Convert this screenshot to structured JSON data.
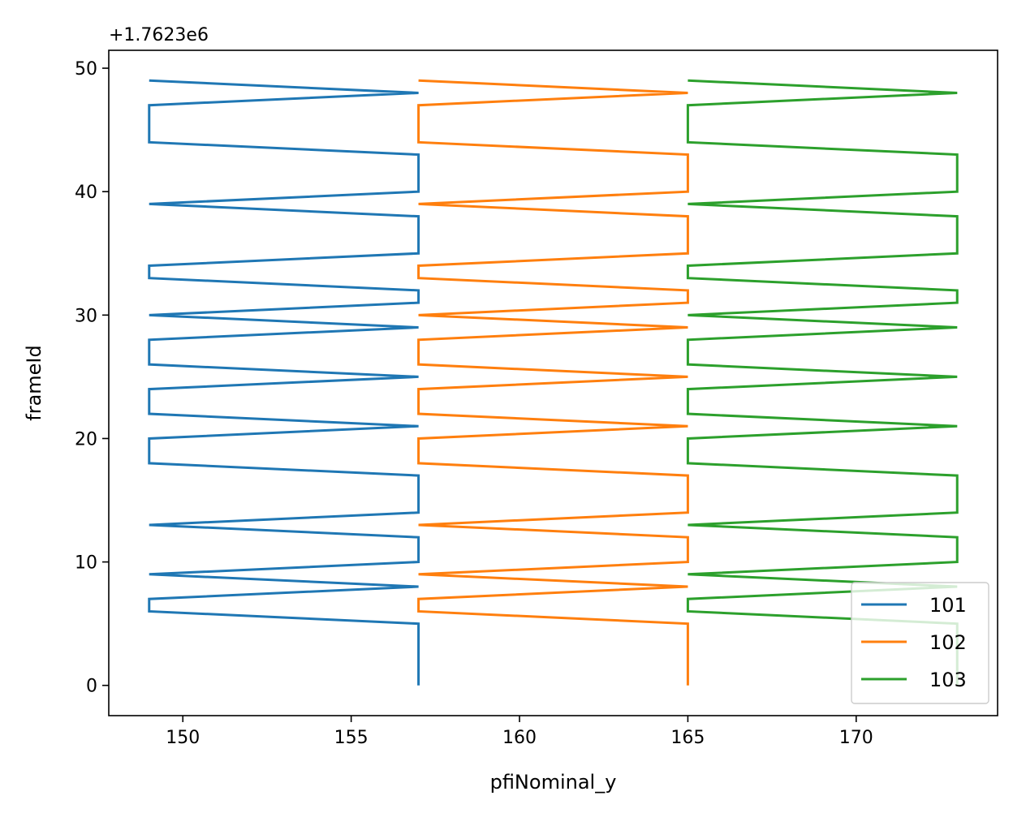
{
  "chart_data": {
    "type": "line",
    "xlabel": "pfiNominal_y",
    "ylabel": "frameId",
    "y_offset_label": "+1.7623e6",
    "xlim": [
      147.8,
      174.2
    ],
    "ylim": [
      -2.45,
      51.45
    ],
    "xticks": [
      150,
      155,
      160,
      165,
      170
    ],
    "yticks": [
      0,
      10,
      20,
      30,
      40,
      50
    ],
    "grid": false,
    "legend_position": "lower-right",
    "y": [
      0,
      5,
      6,
      7,
      8,
      9,
      10,
      12,
      13,
      14,
      17,
      18,
      20,
      21,
      22,
      24,
      25,
      26,
      28,
      29,
      30,
      31,
      32,
      33,
      34,
      35,
      38,
      39,
      40,
      43,
      44,
      47,
      48,
      49
    ],
    "series": [
      {
        "name": "101",
        "color": "#1f77b4",
        "values": [
          157,
          157,
          149,
          149,
          157,
          149,
          157,
          157,
          149,
          157,
          157,
          149,
          149,
          157,
          149,
          149,
          157,
          149,
          149,
          157,
          149,
          157,
          157,
          149,
          149,
          157,
          157,
          149,
          157,
          157,
          149,
          149,
          157,
          149
        ]
      },
      {
        "name": "102",
        "color": "#ff7f0e",
        "values": [
          165,
          165,
          157,
          157,
          165,
          157,
          165,
          165,
          157,
          165,
          165,
          157,
          157,
          165,
          157,
          157,
          165,
          157,
          157,
          165,
          157,
          165,
          165,
          157,
          157,
          165,
          165,
          157,
          165,
          165,
          157,
          157,
          165,
          157
        ]
      },
      {
        "name": "103",
        "color": "#2ca02c",
        "values": [
          173,
          173,
          165,
          165,
          173,
          165,
          173,
          173,
          165,
          173,
          173,
          165,
          165,
          173,
          165,
          165,
          173,
          165,
          165,
          173,
          165,
          173,
          173,
          165,
          165,
          173,
          173,
          165,
          173,
          173,
          165,
          165,
          173,
          165
        ]
      }
    ]
  }
}
